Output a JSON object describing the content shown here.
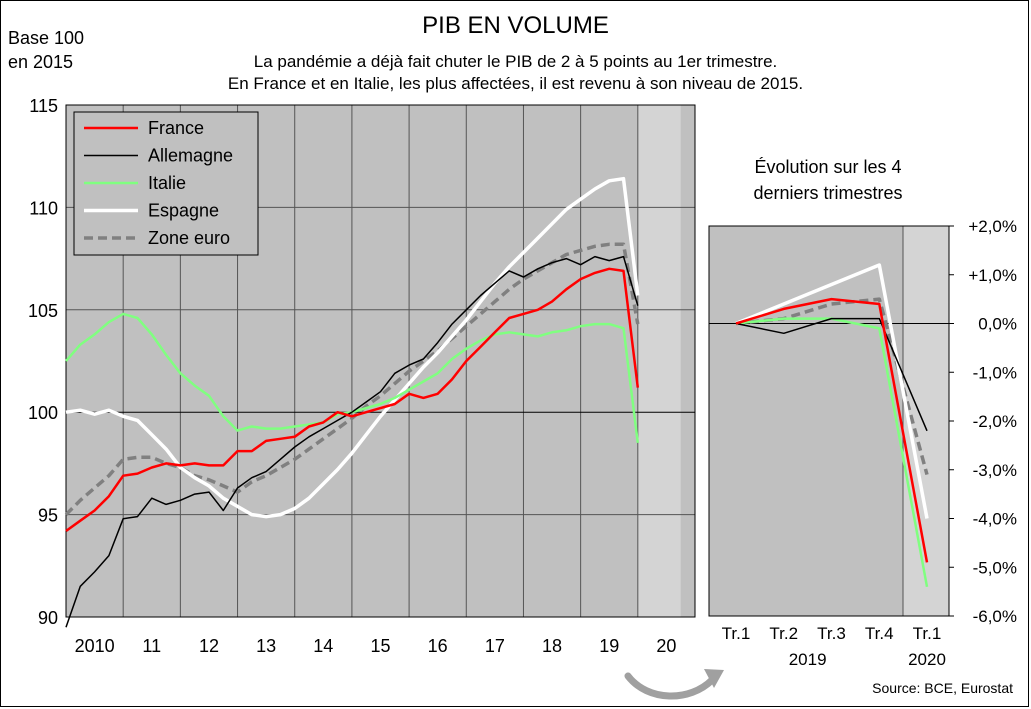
{
  "header": {
    "title": "PIB EN VOLUME",
    "subtitle_line1": "La pandémie a déjà fait chuter le PIB de 2 à 5 points au 1er trimestre.",
    "subtitle_line2": "En France et en Italie, les plus affectées, il est revenu à son niveau de 2015.",
    "base_line1": "Base 100",
    "base_line2": "en 2015",
    "source": "Source: BCE, Eurostat",
    "right_title_line1": "Évolution sur les 4",
    "right_title_line2": "derniers trimestres"
  },
  "colors": {
    "France": "#ff0000",
    "Allemagne": "#000000",
    "Italie": "#80ff80",
    "Espagne": "#ffffff",
    "Zone euro": "#808080",
    "plot_bg": "#c0c0c0",
    "highlight_bg": "#d4d4d4",
    "arrow": "#a0a0a0"
  },
  "chart_data": [
    {
      "type": "line",
      "ylim": [
        90,
        115
      ],
      "yticks": [
        "90",
        "95",
        "100",
        "105",
        "110",
        "115"
      ],
      "yticks_values": [
        90,
        95,
        100,
        105,
        110,
        115
      ],
      "xlim": [
        2009.0,
        2020.0
      ],
      "xticks": [
        "2010",
        "11",
        "12",
        "13",
        "14",
        "15",
        "16",
        "17",
        "18",
        "19",
        "20"
      ],
      "xticks_values": [
        2009.5,
        2010.5,
        2011.5,
        2012.5,
        2013.5,
        2014.5,
        2015.5,
        2016.5,
        2017.5,
        2018.5,
        2019.5
      ],
      "highlight_range": [
        2019.0,
        2019.75
      ],
      "legend_position": "top-left",
      "series": [
        {
          "name": "France",
          "style": "solid",
          "points": [
            [
              2009.0,
              94.2
            ],
            [
              2009.25,
              94.7
            ],
            [
              2009.5,
              95.2
            ],
            [
              2009.75,
              95.9
            ],
            [
              2010.0,
              96.9
            ],
            [
              2010.25,
              97.0
            ],
            [
              2010.5,
              97.3
            ],
            [
              2010.75,
              97.5
            ],
            [
              2011.0,
              97.4
            ],
            [
              2011.25,
              97.5
            ],
            [
              2011.5,
              97.4
            ],
            [
              2011.75,
              97.4
            ],
            [
              2012.0,
              98.1
            ],
            [
              2012.25,
              98.1
            ],
            [
              2012.5,
              98.6
            ],
            [
              2012.75,
              98.7
            ],
            [
              2013.0,
              98.8
            ],
            [
              2013.25,
              99.3
            ],
            [
              2013.5,
              99.5
            ],
            [
              2013.75,
              100.0
            ],
            [
              2014.0,
              99.8
            ],
            [
              2014.25,
              100.0
            ],
            [
              2014.5,
              100.2
            ],
            [
              2014.75,
              100.4
            ],
            [
              2015.0,
              100.9
            ],
            [
              2015.25,
              100.7
            ],
            [
              2015.5,
              100.9
            ],
            [
              2015.75,
              101.6
            ],
            [
              2016.0,
              102.5
            ],
            [
              2016.25,
              103.2
            ],
            [
              2016.5,
              103.9
            ],
            [
              2016.75,
              104.6
            ],
            [
              2017.0,
              104.8
            ],
            [
              2017.25,
              105.0
            ],
            [
              2017.5,
              105.4
            ],
            [
              2017.75,
              106.0
            ],
            [
              2018.0,
              106.5
            ],
            [
              2018.25,
              106.8
            ],
            [
              2018.5,
              107.0
            ],
            [
              2018.75,
              106.9
            ],
            [
              2019.0,
              101.2
            ]
          ]
        },
        {
          "name": "Allemagne",
          "style": "solid",
          "points": [
            [
              2009.0,
              89.5
            ],
            [
              2009.25,
              91.5
            ],
            [
              2009.5,
              92.2
            ],
            [
              2009.75,
              93.0
            ],
            [
              2010.0,
              94.8
            ],
            [
              2010.25,
              94.9
            ],
            [
              2010.5,
              95.8
            ],
            [
              2010.75,
              95.5
            ],
            [
              2011.0,
              95.7
            ],
            [
              2011.25,
              96.0
            ],
            [
              2011.5,
              96.1
            ],
            [
              2011.75,
              95.2
            ],
            [
              2012.0,
              96.3
            ],
            [
              2012.25,
              96.8
            ],
            [
              2012.5,
              97.1
            ],
            [
              2012.75,
              97.7
            ],
            [
              2013.0,
              98.3
            ],
            [
              2013.25,
              98.8
            ],
            [
              2013.5,
              99.2
            ],
            [
              2013.75,
              99.6
            ],
            [
              2014.0,
              100.0
            ],
            [
              2014.25,
              100.5
            ],
            [
              2014.5,
              101.0
            ],
            [
              2014.75,
              101.9
            ],
            [
              2015.0,
              102.3
            ],
            [
              2015.25,
              102.6
            ],
            [
              2015.5,
              103.4
            ],
            [
              2015.75,
              104.3
            ],
            [
              2016.0,
              105.0
            ],
            [
              2016.25,
              105.7
            ],
            [
              2016.5,
              106.3
            ],
            [
              2016.75,
              106.9
            ],
            [
              2017.0,
              106.6
            ],
            [
              2017.25,
              107.0
            ],
            [
              2017.5,
              107.3
            ],
            [
              2017.75,
              107.5
            ],
            [
              2018.0,
              107.2
            ],
            [
              2018.25,
              107.6
            ],
            [
              2018.5,
              107.4
            ],
            [
              2018.75,
              107.6
            ],
            [
              2019.0,
              105.2
            ]
          ]
        },
        {
          "name": "Italie",
          "style": "solid",
          "points": [
            [
              2009.0,
              102.5
            ],
            [
              2009.25,
              103.3
            ],
            [
              2009.5,
              103.8
            ],
            [
              2009.75,
              104.4
            ],
            [
              2010.0,
              104.8
            ],
            [
              2010.25,
              104.6
            ],
            [
              2010.5,
              103.8
            ],
            [
              2010.75,
              102.8
            ],
            [
              2011.0,
              101.9
            ],
            [
              2011.25,
              101.3
            ],
            [
              2011.5,
              100.8
            ],
            [
              2011.75,
              99.8
            ],
            [
              2012.0,
              99.1
            ],
            [
              2012.25,
              99.3
            ],
            [
              2012.5,
              99.2
            ],
            [
              2012.75,
              99.2
            ],
            [
              2013.0,
              99.3
            ],
            [
              2013.25,
              99.4
            ],
            [
              2013.5,
              99.5
            ],
            [
              2013.75,
              99.9
            ],
            [
              2014.0,
              100.0
            ],
            [
              2014.25,
              100.2
            ],
            [
              2014.5,
              100.4
            ],
            [
              2014.75,
              100.7
            ],
            [
              2015.0,
              101.1
            ],
            [
              2015.25,
              101.5
            ],
            [
              2015.5,
              101.9
            ],
            [
              2015.75,
              102.6
            ],
            [
              2016.0,
              103.1
            ],
            [
              2016.25,
              103.5
            ],
            [
              2016.5,
              103.8
            ],
            [
              2016.75,
              103.9
            ],
            [
              2017.0,
              103.8
            ],
            [
              2017.25,
              103.7
            ],
            [
              2017.5,
              103.9
            ],
            [
              2017.75,
              104.0
            ],
            [
              2018.0,
              104.2
            ],
            [
              2018.25,
              104.3
            ],
            [
              2018.5,
              104.3
            ],
            [
              2018.75,
              104.1
            ],
            [
              2019.0,
              98.5
            ]
          ]
        },
        {
          "name": "Espagne",
          "style": "solid",
          "points": [
            [
              2009.0,
              100.0
            ],
            [
              2009.25,
              100.1
            ],
            [
              2009.5,
              99.9
            ],
            [
              2009.75,
              100.1
            ],
            [
              2010.0,
              99.8
            ],
            [
              2010.25,
              99.6
            ],
            [
              2010.5,
              98.9
            ],
            [
              2010.75,
              98.2
            ],
            [
              2011.0,
              97.3
            ],
            [
              2011.25,
              96.8
            ],
            [
              2011.5,
              96.4
            ],
            [
              2011.75,
              95.8
            ],
            [
              2012.0,
              95.4
            ],
            [
              2012.25,
              95.0
            ],
            [
              2012.5,
              94.9
            ],
            [
              2012.75,
              95.0
            ],
            [
              2013.0,
              95.3
            ],
            [
              2013.25,
              95.8
            ],
            [
              2013.5,
              96.5
            ],
            [
              2013.75,
              97.2
            ],
            [
              2014.0,
              98.0
            ],
            [
              2014.25,
              98.9
            ],
            [
              2014.5,
              99.8
            ],
            [
              2014.75,
              100.6
            ],
            [
              2015.0,
              101.4
            ],
            [
              2015.25,
              102.2
            ],
            [
              2015.5,
              102.9
            ],
            [
              2015.75,
              103.7
            ],
            [
              2016.0,
              104.5
            ],
            [
              2016.25,
              105.4
            ],
            [
              2016.5,
              106.3
            ],
            [
              2016.75,
              107.1
            ],
            [
              2017.0,
              107.8
            ],
            [
              2017.25,
              108.5
            ],
            [
              2017.5,
              109.2
            ],
            [
              2017.75,
              109.9
            ],
            [
              2018.0,
              110.4
            ],
            [
              2018.25,
              110.9
            ],
            [
              2018.5,
              111.3
            ],
            [
              2018.75,
              111.4
            ],
            [
              2019.0,
              105.7
            ]
          ]
        },
        {
          "name": "Zone euro",
          "style": "dashed",
          "points": [
            [
              2009.0,
              95.0
            ],
            [
              2009.25,
              95.7
            ],
            [
              2009.5,
              96.3
            ],
            [
              2009.75,
              96.9
            ],
            [
              2010.0,
              97.7
            ],
            [
              2010.25,
              97.8
            ],
            [
              2010.5,
              97.8
            ],
            [
              2010.75,
              97.5
            ],
            [
              2011.0,
              97.3
            ],
            [
              2011.25,
              96.9
            ],
            [
              2011.5,
              96.7
            ],
            [
              2011.75,
              96.4
            ],
            [
              2012.0,
              96.1
            ],
            [
              2012.25,
              96.6
            ],
            [
              2012.5,
              96.9
            ],
            [
              2012.75,
              97.3
            ],
            [
              2013.0,
              97.7
            ],
            [
              2013.25,
              98.2
            ],
            [
              2013.5,
              98.7
            ],
            [
              2013.75,
              99.2
            ],
            [
              2014.0,
              99.7
            ],
            [
              2014.25,
              100.3
            ],
            [
              2014.5,
              100.8
            ],
            [
              2014.75,
              101.4
            ],
            [
              2015.0,
              102.0
            ],
            [
              2015.25,
              102.5
            ],
            [
              2015.5,
              103.0
            ],
            [
              2015.75,
              103.6
            ],
            [
              2016.0,
              104.2
            ],
            [
              2016.25,
              104.8
            ],
            [
              2016.5,
              105.4
            ],
            [
              2016.75,
              106.0
            ],
            [
              2017.0,
              106.5
            ],
            [
              2017.25,
              106.9
            ],
            [
              2017.5,
              107.3
            ],
            [
              2017.75,
              107.7
            ],
            [
              2018.0,
              107.9
            ],
            [
              2018.25,
              108.1
            ],
            [
              2018.5,
              108.2
            ],
            [
              2018.75,
              108.2
            ],
            [
              2019.0,
              104.3
            ]
          ]
        }
      ]
    },
    {
      "type": "line",
      "ylim": [
        -6.0,
        2.0
      ],
      "yticks": [
        "+2,0%",
        "+1,0%",
        "0,0%",
        "-1,0%",
        "-2,0%",
        "-3,0%",
        "-4,0%",
        "-5,0%",
        "-6,0%"
      ],
      "yticks_values": [
        2,
        1,
        0,
        -1,
        -2,
        -3,
        -4,
        -5,
        -6
      ],
      "categories": [
        "Tr.1",
        "Tr.2",
        "Tr.3",
        "Tr.4",
        "Tr.1"
      ],
      "year_labels": [
        {
          "label": "2019",
          "at_category": 1.5
        },
        {
          "label": "2020",
          "at_category": 4
        }
      ],
      "series": [
        {
          "name": "France",
          "values": [
            0.0,
            0.3,
            0.5,
            0.4,
            -4.9
          ]
        },
        {
          "name": "Allemagne",
          "values": [
            0.0,
            -0.2,
            0.1,
            0.1,
            -2.2
          ]
        },
        {
          "name": "Italie",
          "values": [
            0.0,
            0.1,
            0.1,
            -0.1,
            -5.4
          ]
        },
        {
          "name": "Espagne",
          "values": [
            0.0,
            0.4,
            0.8,
            1.2,
            -4.0
          ]
        },
        {
          "name": "Zone euro",
          "values": [
            0.0,
            0.1,
            0.4,
            0.5,
            -3.1
          ]
        }
      ]
    }
  ]
}
